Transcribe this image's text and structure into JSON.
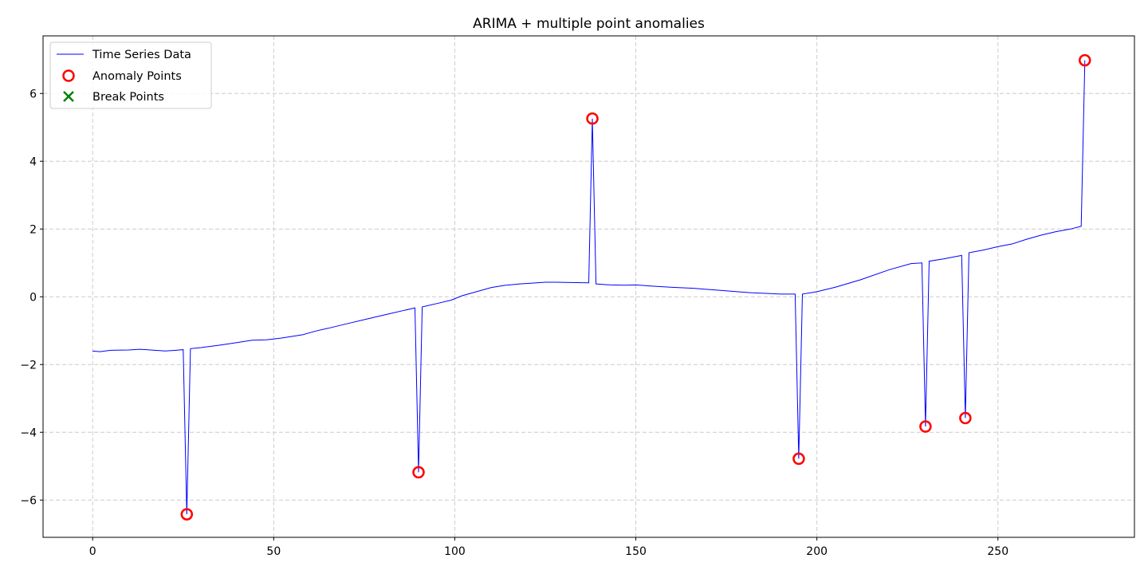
{
  "chart_data": {
    "type": "line",
    "title": "ARIMA + multiple point anomalies",
    "xlabel": "",
    "ylabel": "",
    "xlim": [
      -13.7,
      287.7
    ],
    "ylim": [
      -7.1,
      7.7
    ],
    "xticks": [
      0,
      50,
      100,
      150,
      200,
      250
    ],
    "yticks": [
      -6,
      -4,
      -2,
      0,
      2,
      4,
      6
    ],
    "grid": true,
    "legend": {
      "placement": "upper-left"
    },
    "series": [
      {
        "name": "Time Series Data",
        "color": "#0000ff",
        "kind": "line",
        "x": [
          0,
          2,
          5,
          10,
          13,
          16,
          20,
          23,
          25,
          26,
          27,
          30,
          35,
          40,
          44,
          48,
          52,
          58,
          62,
          65,
          70,
          76,
          82,
          86,
          89,
          90,
          91,
          95,
          99,
          102,
          106,
          110,
          114,
          118,
          121,
          125,
          128,
          132,
          137,
          138,
          139,
          143,
          147,
          150,
          154,
          160,
          166,
          172,
          178,
          182,
          186,
          190,
          194,
          195,
          196,
          200,
          205,
          212,
          220,
          226,
          229,
          230,
          231,
          235,
          240,
          241,
          242,
          246,
          250,
          254,
          258,
          262,
          266,
          270,
          273,
          274
        ],
        "y": [
          -1.6,
          -1.62,
          -1.58,
          -1.57,
          -1.55,
          -1.57,
          -1.6,
          -1.58,
          -1.56,
          -6.42,
          -1.53,
          -1.5,
          -1.43,
          -1.35,
          -1.28,
          -1.27,
          -1.22,
          -1.12,
          -1.0,
          -0.93,
          -0.8,
          -0.65,
          -0.5,
          -0.4,
          -0.33,
          -5.18,
          -0.3,
          -0.2,
          -0.1,
          0.03,
          0.15,
          0.27,
          0.34,
          0.38,
          0.4,
          0.43,
          0.43,
          0.42,
          0.41,
          5.26,
          0.38,
          0.35,
          0.34,
          0.35,
          0.32,
          0.28,
          0.25,
          0.2,
          0.15,
          0.12,
          0.1,
          0.08,
          0.08,
          -4.78,
          0.08,
          0.15,
          0.28,
          0.5,
          0.8,
          0.98,
          1.0,
          -3.83,
          1.05,
          1.12,
          1.22,
          -3.58,
          1.3,
          1.38,
          1.48,
          1.56,
          1.7,
          1.82,
          1.92,
          2.0,
          2.08,
          6.98
        ]
      },
      {
        "name": "Anomaly Points",
        "color": "#ff0000",
        "kind": "scatter",
        "marker": "circle",
        "x": [
          26,
          90,
          138,
          195,
          230,
          241,
          274
        ],
        "y": [
          -6.42,
          -5.18,
          5.26,
          -4.78,
          -3.83,
          -3.58,
          6.98
        ]
      },
      {
        "name": "Break Points",
        "color": "#008000",
        "kind": "scatter",
        "marker": "x",
        "x": [],
        "y": []
      }
    ]
  }
}
